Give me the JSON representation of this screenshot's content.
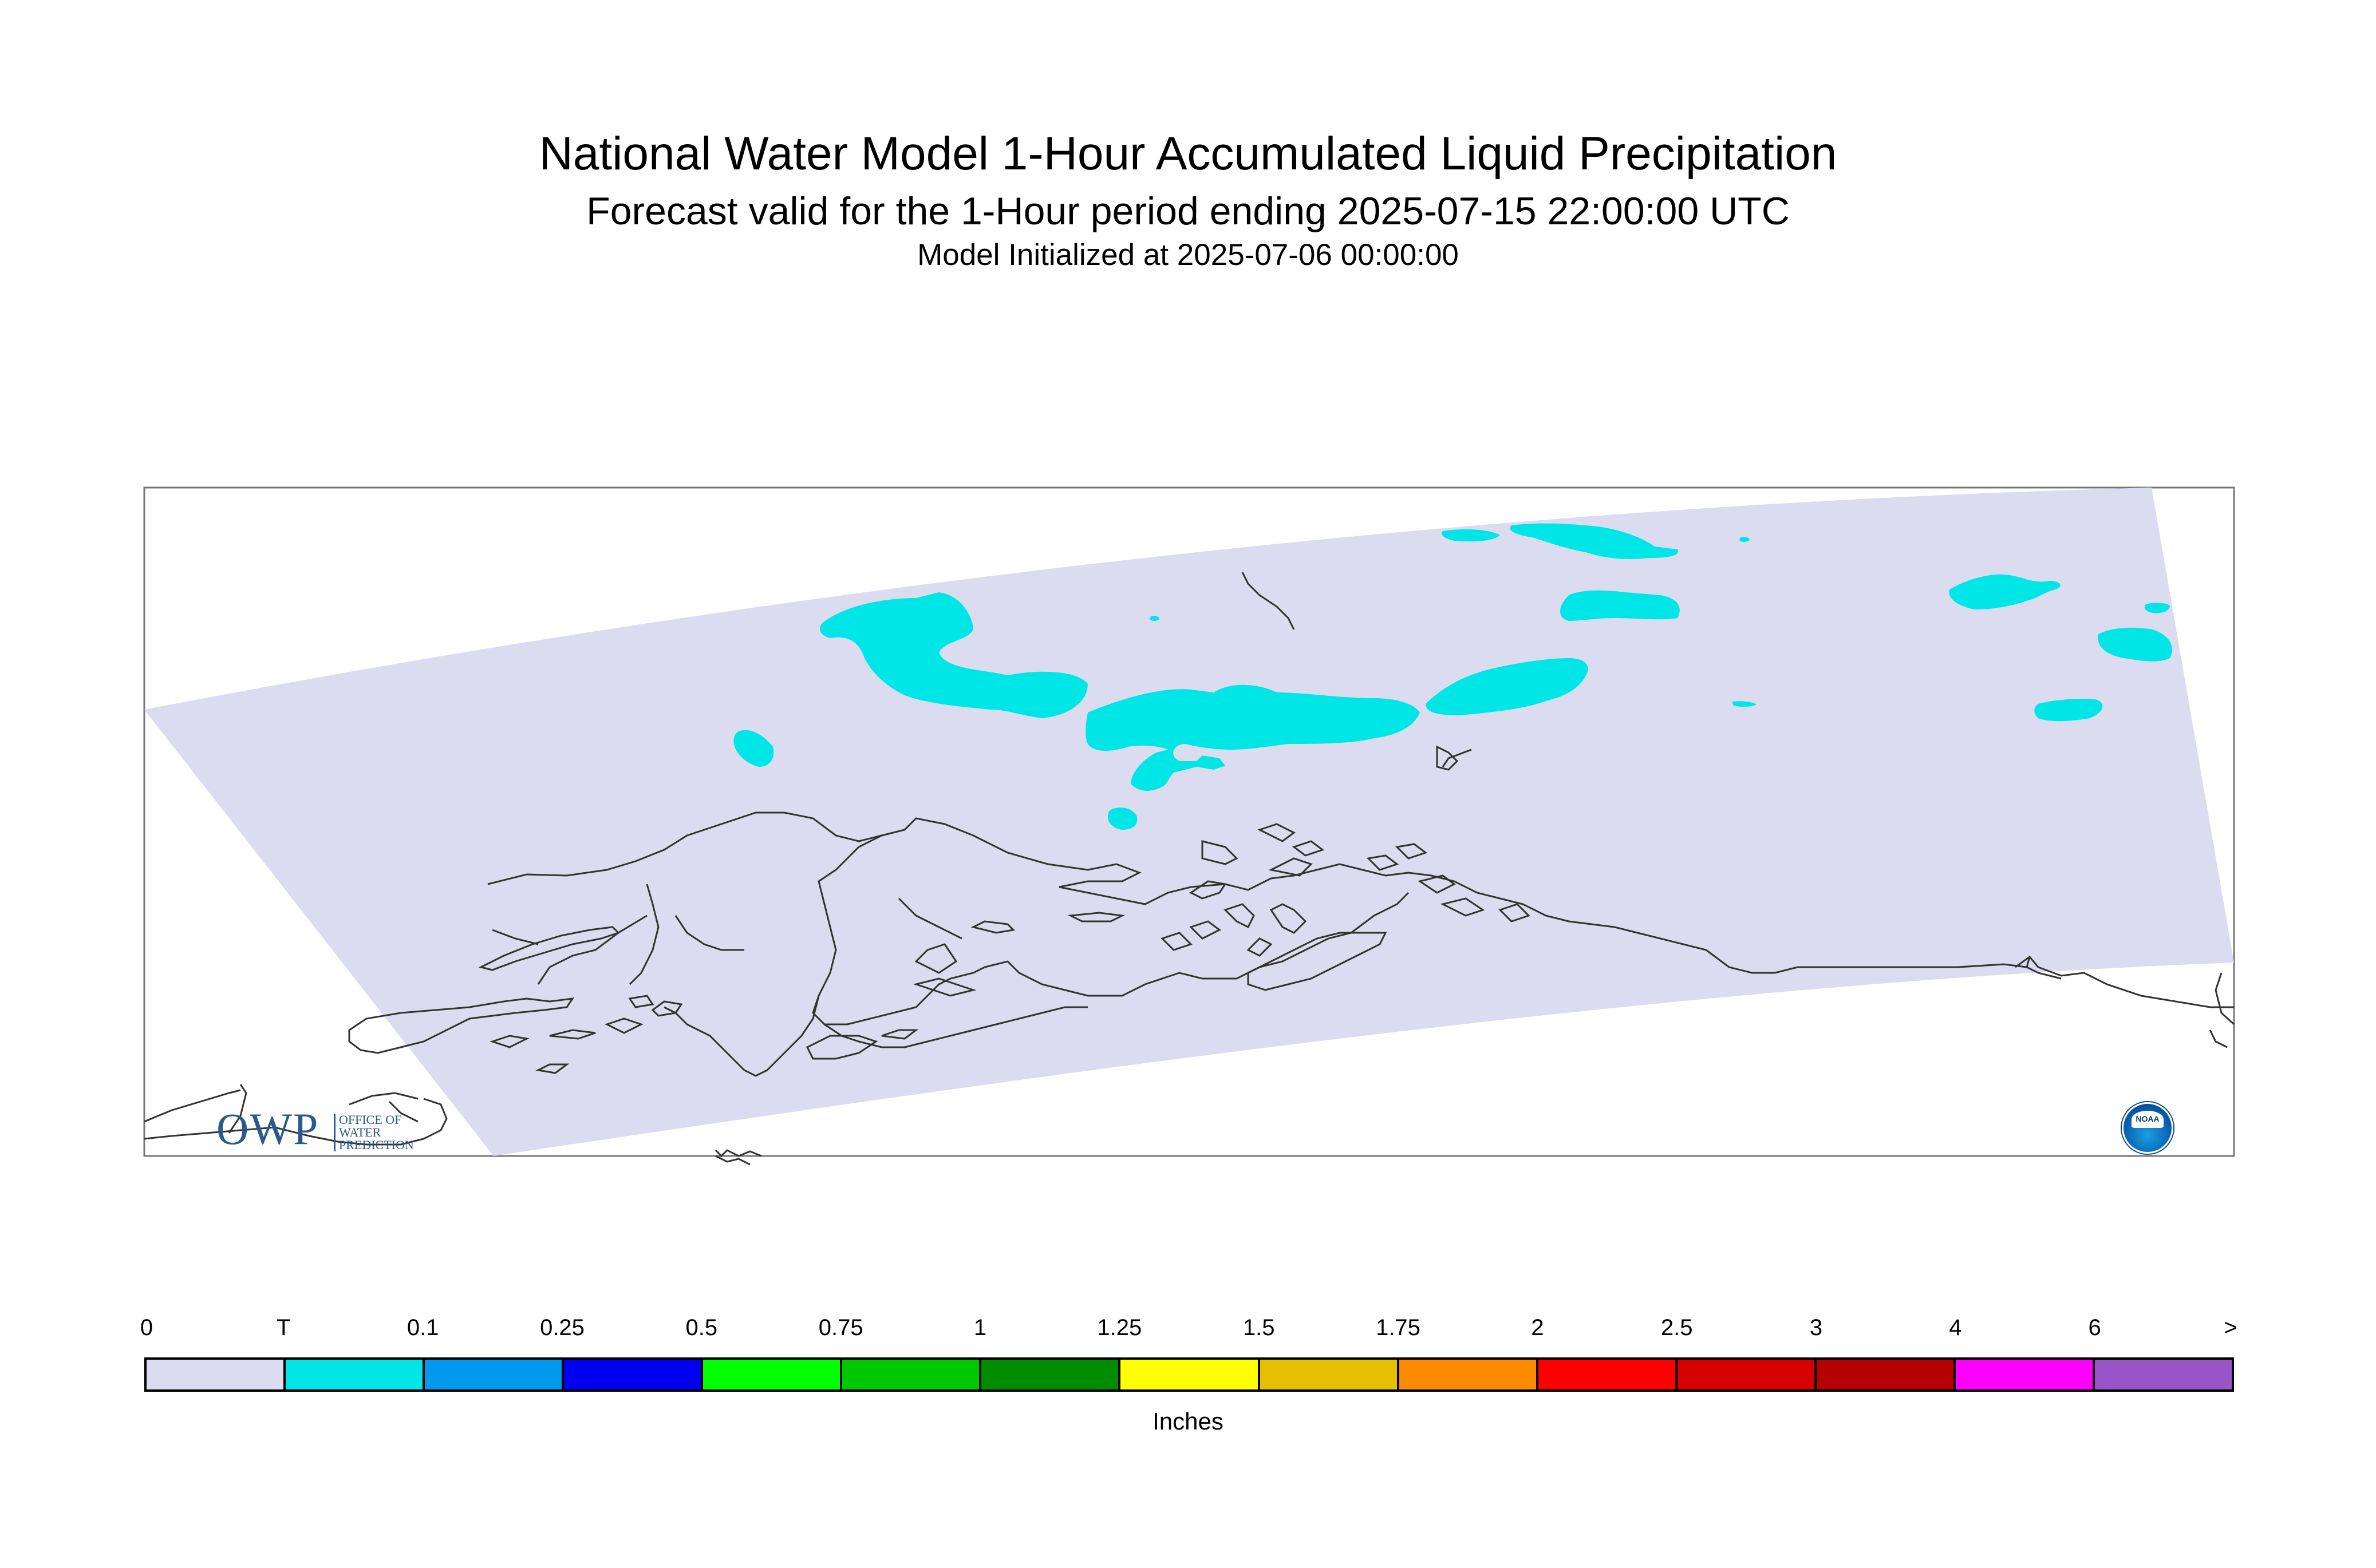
{
  "title": "National Water Model 1-Hour Accumulated Liquid Precipitation",
  "subtitle": "Forecast valid for the 1-Hour period ending 2025-07-15 22:00:00 UTC",
  "init_line": "Model Initialized at 2025-07-06 00:00:00",
  "logos": {
    "owp_big": "OWP",
    "owp_small_1": "OFFICE OF",
    "owp_small_2": "WATER",
    "owp_small_3": "PREDICTION",
    "noaa": "NOAA"
  },
  "colors": {
    "domain_fill": "#dcdcf0",
    "trace_fill": "#00e6e6",
    "coastline": "#333333"
  },
  "legend": {
    "units": "Inches",
    "tick_labels": [
      "0",
      "T",
      "0.1",
      "0.25",
      "0.5",
      "0.75",
      "1",
      "1.25",
      "1.5",
      "1.75",
      "2",
      "2.5",
      "3",
      "4",
      "6",
      ">"
    ],
    "colors": [
      "#dcdcf0",
      "#00e6e6",
      "#0099ee",
      "#0000f0",
      "#00ff00",
      "#00c800",
      "#008c00",
      "#ffff00",
      "#e6c000",
      "#ff8c00",
      "#ff0000",
      "#d70000",
      "#b40000",
      "#ff00ff",
      "#9955c8"
    ]
  }
}
